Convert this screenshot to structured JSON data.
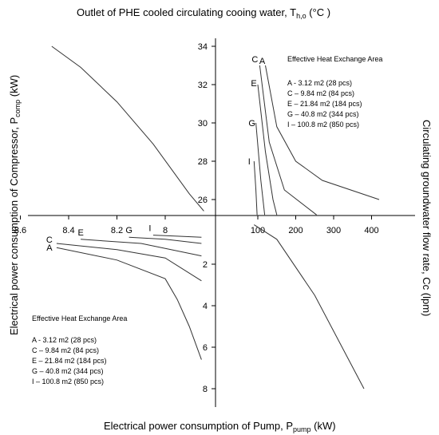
{
  "chart_data": {
    "type": "line",
    "titles": {
      "top_prefix": "Outlet of PHE cooled circulating cooing water, T",
      "top_sub": "h,o",
      "top_suffix": " (°C )",
      "left_prefix": "Electrical power consumption of Compressor, P",
      "left_sub": "comp",
      "left_suffix": " (kW)",
      "right": "Circulating groundwater flow rate, Cc (lpm)",
      "bottom_prefix": "Electrical power consumption of Pump, P",
      "bottom_sub": "pump",
      "bottom_suffix": " (kW)"
    },
    "axes": {
      "temperature_ticks": [
        "26",
        "28",
        "30",
        "32",
        "34"
      ],
      "compressor_ticks": [
        "8.6",
        "8.4",
        "8.2",
        "8"
      ],
      "flow_ticks": [
        "100",
        "200",
        "300",
        "400"
      ],
      "pump_ticks": [
        "2",
        "4",
        "6",
        "8"
      ]
    },
    "legend": {
      "title": "Effective Heat Exchange Area",
      "items": [
        "A - 3.12 m2 (28 pcs)",
        "C – 9.84 m2 (84 pcs)",
        "E – 21.84 m2 (184 pcs)",
        "G – 40.8 m2 (344 pcs)",
        "I – 100.8 m2 (850 pcs)"
      ]
    },
    "quadrant_II": {
      "description_axes": "x: compressor power (kW), y: T_h,o (°C)",
      "series": [
        {
          "points": [
            [
              8.47,
              34.0
            ],
            [
              8.35,
              32.9
            ],
            [
              8.2,
              31.1
            ],
            [
              8.05,
              28.9
            ],
            [
              7.9,
              26.3
            ],
            [
              7.84,
              25.4
            ]
          ]
        }
      ]
    },
    "quadrant_I": {
      "description_axes": "x: flow rate (lpm), y: T_h,o (°C)",
      "series": [
        {
          "name": "A",
          "points": [
            [
              120,
              33.0
            ],
            [
              150,
              29.8
            ],
            [
              200,
              28.0
            ],
            [
              270,
              27.0
            ],
            [
              420,
              26.0
            ]
          ]
        },
        {
          "name": "C",
          "points": [
            [
              105,
              33.0
            ],
            [
              130,
              29.0
            ],
            [
              170,
              26.5
            ],
            [
              255,
              25.2
            ]
          ]
        },
        {
          "name": "E",
          "points": [
            [
              100,
              32.0
            ],
            [
              120,
              28.5
            ],
            [
              140,
              26.0
            ],
            [
              150,
              25.2
            ]
          ]
        },
        {
          "name": "G",
          "points": [
            [
              95,
              30.0
            ],
            [
              108,
              27.0
            ],
            [
              118,
              25.2
            ]
          ]
        },
        {
          "name": "I",
          "points": [
            [
              90,
              28.0
            ],
            [
              95,
              26.5
            ],
            [
              98,
              25.2
            ]
          ]
        }
      ]
    },
    "quadrant_III": {
      "description_axes": "x: compressor power (kW), y: pump power (kW)",
      "series": [
        {
          "name": "A",
          "points": [
            [
              8.45,
              1.2
            ],
            [
              8.2,
              1.8
            ],
            [
              8.0,
              2.7
            ],
            [
              7.95,
              3.7
            ],
            [
              7.9,
              5.0
            ],
            [
              7.85,
              6.6
            ]
          ]
        },
        {
          "name": "C",
          "points": [
            [
              8.45,
              1.0
            ],
            [
              8.2,
              1.3
            ],
            [
              8.0,
              1.7
            ],
            [
              7.85,
              2.8
            ]
          ]
        },
        {
          "name": "E",
          "points": [
            [
              8.35,
              0.8
            ],
            [
              8.1,
              1.0
            ],
            [
              7.85,
              1.6
            ]
          ]
        },
        {
          "name": "G",
          "points": [
            [
              8.15,
              0.7
            ],
            [
              8.0,
              0.8
            ],
            [
              7.85,
              1.0
            ]
          ]
        },
        {
          "name": "I",
          "points": [
            [
              8.05,
              0.6
            ],
            [
              7.95,
              0.65
            ],
            [
              7.85,
              0.7
            ]
          ]
        }
      ]
    },
    "quadrant_IV": {
      "description_axes": "x: flow rate (lpm), y: pump power (kW)",
      "series": [
        {
          "points": [
            [
              90,
              0.1
            ],
            [
              150,
              0.8
            ],
            [
              250,
              3.5
            ],
            [
              380,
              8.0
            ]
          ]
        }
      ]
    }
  }
}
